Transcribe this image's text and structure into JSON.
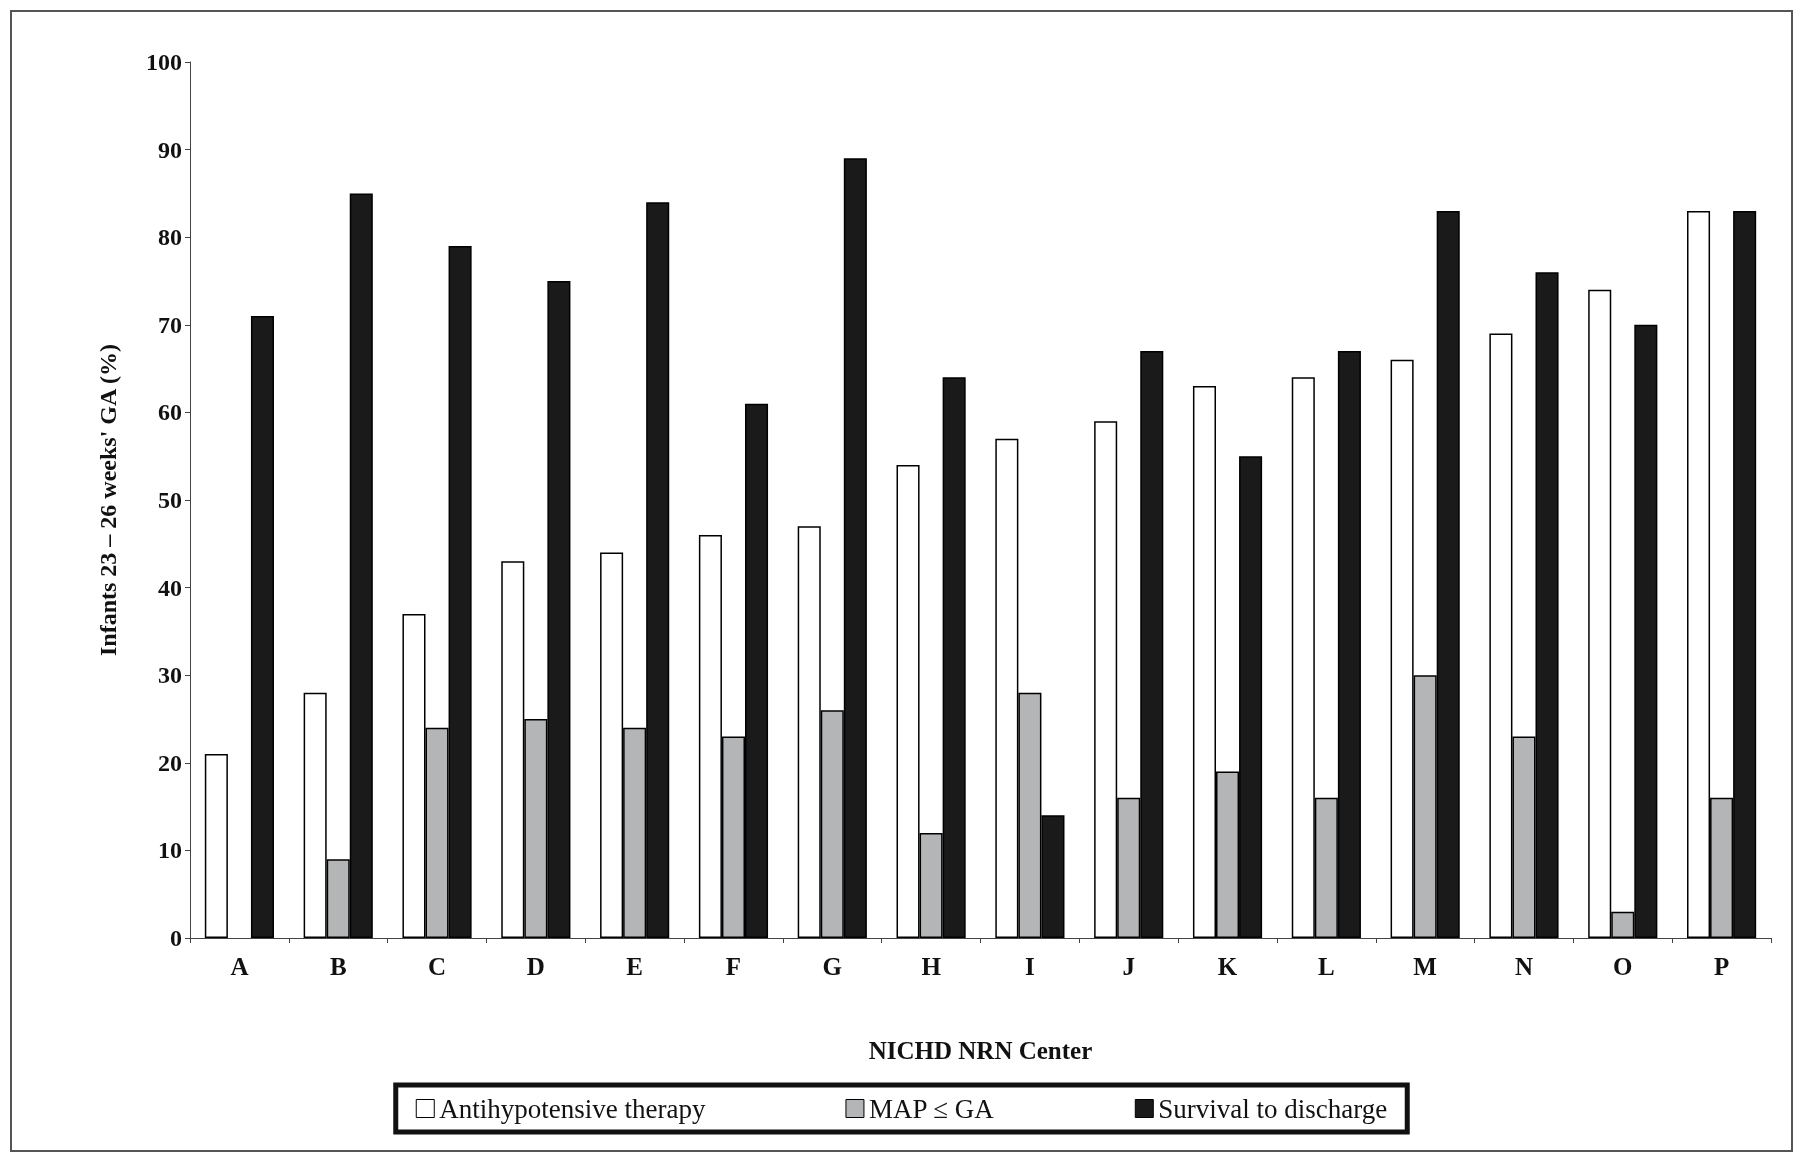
{
  "chart_data": {
    "type": "bar",
    "xlabel": "NICHD NRN Center",
    "ylabel": "Infants 23 – 26 weeks' GA (%)",
    "categories": [
      "A",
      "B",
      "C",
      "D",
      "E",
      "F",
      "G",
      "H",
      "I",
      "J",
      "K",
      "L",
      "M",
      "N",
      "O",
      "P"
    ],
    "series": [
      {
        "name": "Antihypotensive therapy",
        "color": "#ffffff",
        "values": [
          21,
          28,
          37,
          43,
          44,
          46,
          47,
          54,
          57,
          59,
          63,
          64,
          66,
          69,
          74,
          83
        ]
      },
      {
        "name": "MAP ≤ GA",
        "color": "#b3b5b6",
        "values": [
          null,
          9,
          24,
          25,
          24,
          23,
          26,
          12,
          28,
          16,
          19,
          16,
          30,
          23,
          3,
          16
        ]
      },
      {
        "name": "Survival to discharge",
        "color": "#1a1a1a",
        "values": [
          71,
          85,
          79,
          75,
          84,
          61,
          89,
          64,
          14,
          67,
          55,
          67,
          83,
          76,
          70,
          83
        ]
      }
    ],
    "ylim": [
      0,
      100
    ],
    "yticks": [
      0,
      10,
      20,
      30,
      40,
      50,
      60,
      70,
      80,
      90,
      100
    ],
    "grid": false,
    "legend": "bottom"
  }
}
